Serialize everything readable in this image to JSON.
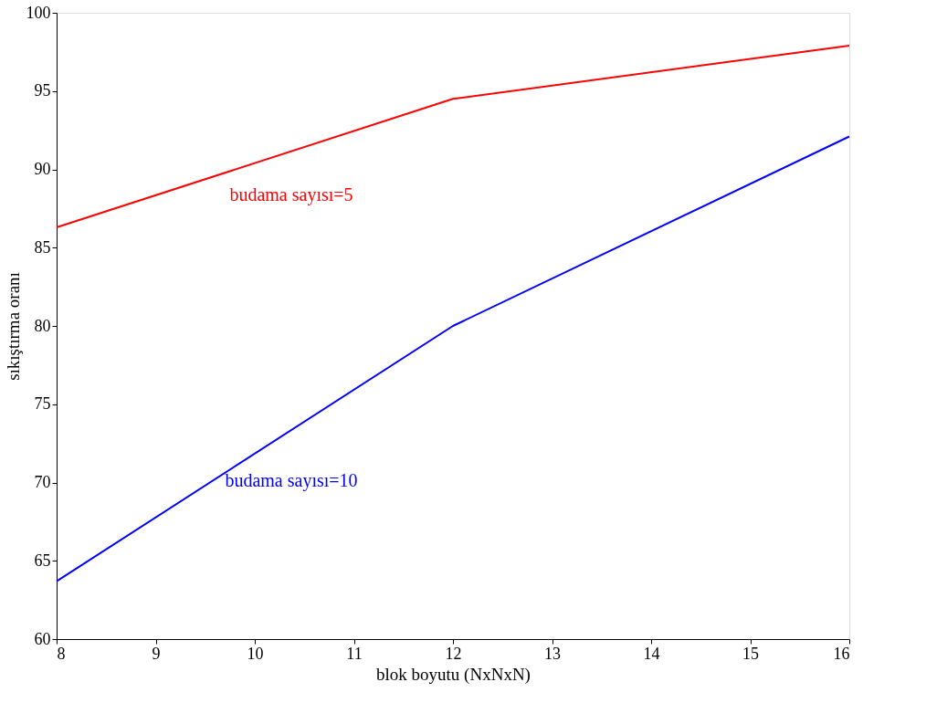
{
  "chart_data": {
    "type": "line",
    "xlabel": "blok boyutu (NxNxN)",
    "ylabel": "sıkıştırma oranı",
    "x": [
      8,
      12,
      16
    ],
    "series": [
      {
        "name": "budama sayısı=5",
        "color": "#ff0000",
        "values": [
          86.3,
          94.5,
          97.9
        ]
      },
      {
        "name": "budama sayısı=10",
        "color": "#0000ff",
        "values": [
          63.7,
          80.0,
          92.1
        ]
      }
    ],
    "xlim": [
      8,
      16
    ],
    "xticks": [
      8,
      9,
      10,
      11,
      12,
      13,
      14,
      15,
      16
    ],
    "ylim": [
      60,
      100
    ],
    "yticks": [
      60,
      65,
      70,
      75,
      80,
      85,
      90,
      95,
      100
    ],
    "grid": false,
    "legend": false,
    "marker": "none",
    "line_style": "solid"
  }
}
